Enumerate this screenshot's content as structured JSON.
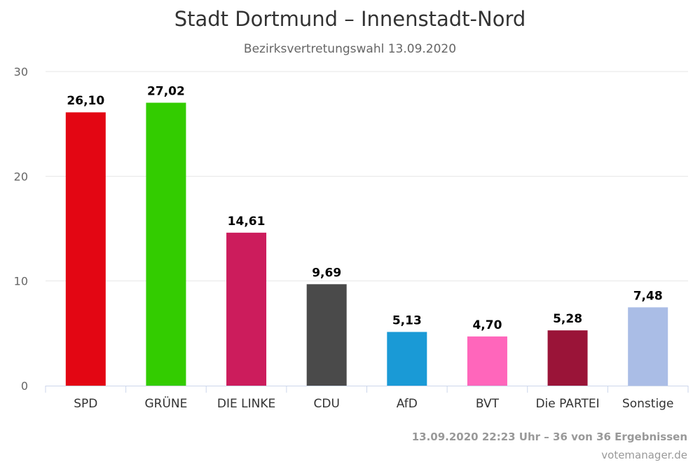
{
  "chart_data": {
    "type": "bar",
    "title": "Stadt Dortmund – Innenstadt-Nord",
    "subtitle": "Bezirksvertretungswahl 13.09.2020",
    "categories": [
      "SPD",
      "GRÜNE",
      "DIE LINKE",
      "CDU",
      "AfD",
      "BVT",
      "Die PARTEI",
      "Sonstige"
    ],
    "values": [
      26.1,
      27.02,
      14.61,
      9.69,
      5.13,
      4.7,
      5.28,
      7.48
    ],
    "value_labels": [
      "26,10",
      "27,02",
      "14,61",
      "9,69",
      "5,13",
      "4,70",
      "5,28",
      "7,48"
    ],
    "colors": [
      "#e30613",
      "#33cc00",
      "#cc1c5c",
      "#4a4a4a",
      "#1a9ad6",
      "#ff66bb",
      "#9a1438",
      "#aabde6"
    ],
    "ylim": [
      0,
      30
    ],
    "yticks": [
      0,
      10,
      20,
      30
    ],
    "xlabel": "",
    "ylabel": "",
    "grid": true,
    "legend": "none"
  },
  "footer": {
    "status": "13.09.2020 22:23 Uhr – 36 von 36 Ergebnissen",
    "credit": "votemanager.de"
  }
}
